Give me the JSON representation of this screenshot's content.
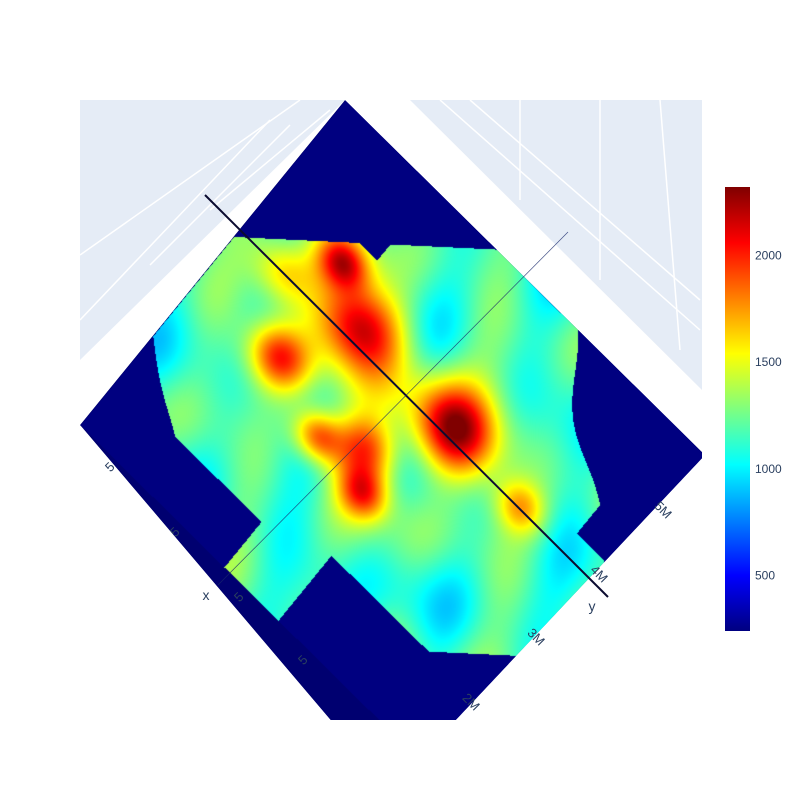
{
  "chart_data": {
    "type": "heatmap",
    "subtype": "3d-surface-top-view",
    "colorscale": "jet",
    "title": "",
    "colorbar": {
      "range": [
        240,
        2320
      ],
      "ticks": [
        500,
        1000,
        1500,
        2000
      ],
      "tick_labels": [
        "500",
        "1000",
        "1500",
        "2000"
      ]
    },
    "axes": {
      "x": {
        "title": "x",
        "tick_labels": [
          "5",
          "5",
          "5",
          "5"
        ]
      },
      "y": {
        "title": "y",
        "tick_labels": [
          "2M",
          "3M",
          "4M",
          "5M"
        ]
      }
    },
    "background_value": 240,
    "hotspots": [
      {
        "u": 0.3,
        "v": 0.36,
        "value": 2250,
        "spread": 0.07
      },
      {
        "u": 0.58,
        "v": 0.38,
        "value": 2300,
        "spread": 0.07
      },
      {
        "u": 0.2,
        "v": 0.28,
        "value": 1950,
        "spread": 0.04
      },
      {
        "u": 0.22,
        "v": 0.55,
        "value": 1950,
        "spread": 0.05
      },
      {
        "u": 0.38,
        "v": 0.62,
        "value": 2000,
        "spread": 0.04
      },
      {
        "u": 0.47,
        "v": 0.56,
        "value": 1900,
        "spread": 0.05
      },
      {
        "u": 0.52,
        "v": 0.64,
        "value": 1850,
        "spread": 0.04
      },
      {
        "u": 0.78,
        "v": 0.4,
        "value": 1650,
        "spread": 0.04
      },
      {
        "u": 0.12,
        "v": 0.4,
        "value": 1700,
        "spread": 0.05
      }
    ]
  }
}
